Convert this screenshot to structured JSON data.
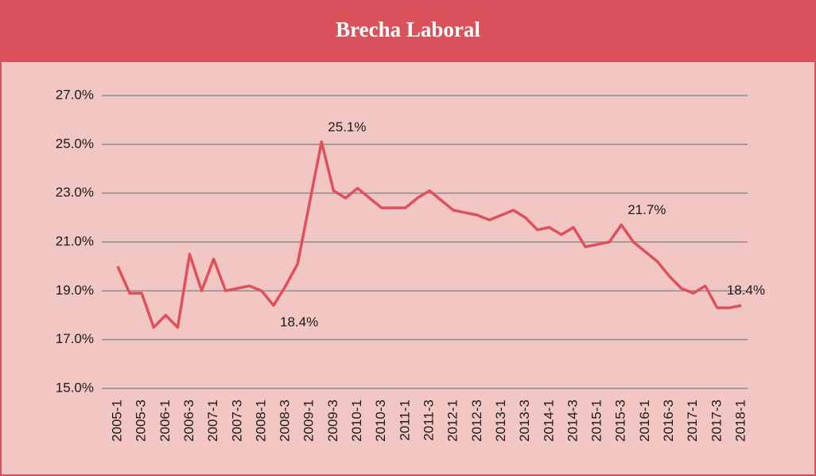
{
  "chart_data": {
    "type": "line",
    "title": "Brecha Laboral",
    "categories": [
      "2005-1",
      null,
      "2005-3",
      null,
      "2006-1",
      null,
      "2006-3",
      null,
      "2007-1",
      null,
      "2007-3",
      null,
      "2008-1",
      null,
      "2008-3",
      null,
      "2009-1",
      null,
      "2009-3",
      null,
      "2010-1",
      null,
      "2010-3",
      null,
      "2011-1",
      null,
      "2011-3",
      null,
      "2012-1",
      null,
      "2012-3",
      null,
      "2013-1",
      null,
      "2013-3",
      null,
      "2014-1",
      null,
      "2014-3",
      null,
      "2015-1",
      null,
      "2015-3",
      null,
      "2016-1",
      null,
      "2016-3",
      null,
      "2017-1",
      null,
      "2017-3",
      null,
      "2018-1"
    ],
    "series": [
      {
        "color": "#e0505b",
        "values": [
          20.0,
          18.9,
          18.9,
          17.5,
          18.0,
          17.5,
          20.5,
          19.0,
          20.3,
          19.0,
          19.1,
          19.2,
          19.0,
          18.4,
          19.2,
          20.1,
          22.6,
          25.1,
          23.1,
          22.8,
          23.2,
          22.8,
          22.4,
          22.4,
          22.4,
          22.8,
          23.1,
          22.7,
          22.3,
          22.2,
          22.1,
          21.9,
          22.1,
          22.3,
          22.0,
          21.5,
          21.6,
          21.3,
          21.6,
          20.8,
          20.9,
          21.0,
          21.7,
          21.0,
          20.6,
          20.2,
          19.6,
          19.1,
          18.9,
          19.2,
          18.3,
          18.3,
          18.4
        ],
        "value_labels": [
          null,
          null,
          null,
          null,
          null,
          null,
          null,
          null,
          null,
          null,
          null,
          null,
          null,
          "18.4%",
          null,
          null,
          null,
          "25.1%",
          null,
          null,
          null,
          null,
          null,
          null,
          null,
          null,
          null,
          null,
          null,
          null,
          null,
          null,
          null,
          null,
          null,
          null,
          null,
          null,
          null,
          null,
          null,
          null,
          "21.7%",
          null,
          null,
          null,
          null,
          null,
          null,
          null,
          null,
          null,
          "18.4%"
        ]
      }
    ],
    "ylim": [
      15,
      27
    ],
    "yticks": [
      {
        "value": 15,
        "label": "15.0%"
      },
      {
        "value": 17,
        "label": "17.0%"
      },
      {
        "value": 19,
        "label": "19.0%"
      },
      {
        "value": 21,
        "label": "21.0%"
      },
      {
        "value": 23,
        "label": "23.0%"
      },
      {
        "value": 25,
        "label": "25.0%"
      },
      {
        "value": 27,
        "label": "27.0%"
      }
    ],
    "grid": true
  }
}
